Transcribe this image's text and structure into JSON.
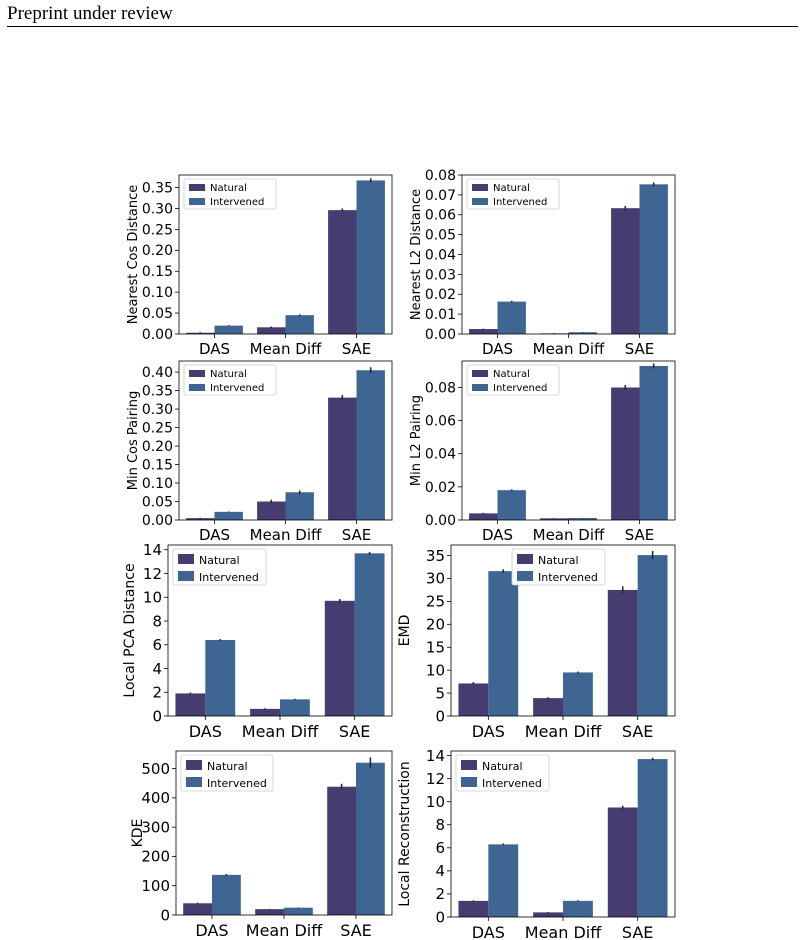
{
  "page": {
    "header": "Preprint under review"
  },
  "colors": {
    "natural": "#463c6f",
    "intervened": "#3f6592",
    "errbar": "#2b2b2b"
  },
  "chart_data": [
    {
      "type": "bar",
      "categories": [
        "DAS",
        "Mean Diff",
        "SAE"
      ],
      "series": [
        {
          "name": "Natural",
          "values": [
            0.003,
            0.016,
            0.296
          ],
          "errors": [
            0.001,
            0.002,
            0.004
          ]
        },
        {
          "name": "Intervened",
          "values": [
            0.02,
            0.045,
            0.367
          ],
          "errors": [
            0.001,
            0.002,
            0.005
          ]
        }
      ],
      "ylabel": "Nearest Cos Distance",
      "ylim": [
        0,
        0.38
      ],
      "yticks": [
        "0.00",
        "0.05",
        "0.10",
        "0.15",
        "0.20",
        "0.25",
        "0.30",
        "0.35"
      ],
      "legend": "top-left",
      "grid": false
    },
    {
      "type": "bar",
      "categories": [
        "DAS",
        "Mean Diff",
        "SAE"
      ],
      "series": [
        {
          "name": "Natural",
          "values": [
            0.0025,
            0.0003,
            0.0633
          ],
          "errors": [
            0.0002,
            0.0001,
            0.0012
          ]
        },
        {
          "name": "Intervened",
          "values": [
            0.0163,
            0.0009,
            0.0753
          ],
          "errors": [
            0.0004,
            0.0001,
            0.001
          ]
        }
      ],
      "ylabel": "Nearest L2 Distance",
      "ylim": [
        0,
        0.08
      ],
      "yticks": [
        "0.00",
        "0.01",
        "0.02",
        "0.03",
        "0.04",
        "0.05",
        "0.06",
        "0.07",
        "0.08"
      ],
      "legend": "top-left",
      "grid": false
    },
    {
      "type": "bar",
      "categories": [
        "DAS",
        "Mean Diff",
        "SAE"
      ],
      "series": [
        {
          "name": "Natural",
          "values": [
            0.005,
            0.05,
            0.331
          ],
          "errors": [
            0.001,
            0.005,
            0.007
          ]
        },
        {
          "name": "Intervened",
          "values": [
            0.022,
            0.075,
            0.405
          ],
          "errors": [
            0.001,
            0.005,
            0.008
          ]
        }
      ],
      "ylabel": "Min Cos Pairing",
      "ylim": [
        0,
        0.43
      ],
      "yticks": [
        "0.00",
        "0.05",
        "0.10",
        "0.15",
        "0.20",
        "0.25",
        "0.30",
        "0.35",
        "0.40"
      ],
      "legend": "top-left",
      "grid": false
    },
    {
      "type": "bar",
      "categories": [
        "DAS",
        "Mean Diff",
        "SAE"
      ],
      "series": [
        {
          "name": "Natural",
          "values": [
            0.004,
            0.001,
            0.08
          ],
          "errors": [
            0.0003,
            0.0001,
            0.0015
          ]
        },
        {
          "name": "Intervened",
          "values": [
            0.018,
            0.0012,
            0.093
          ],
          "errors": [
            0.0005,
            0.0001,
            0.0015
          ]
        }
      ],
      "ylabel": "Min L2 Pairing",
      "ylim": [
        0,
        0.096
      ],
      "yticks": [
        "0.00",
        "0.02",
        "0.04",
        "0.06",
        "0.08"
      ],
      "legend": "top-left",
      "grid": false
    },
    {
      "type": "bar",
      "categories": [
        "DAS",
        "Mean Diff",
        "SAE"
      ],
      "series": [
        {
          "name": "Natural",
          "values": [
            1.9,
            0.6,
            9.7
          ],
          "errors": [
            0.08,
            0.05,
            0.15
          ]
        },
        {
          "name": "Intervened",
          "values": [
            6.4,
            1.4,
            13.7
          ],
          "errors": [
            0.08,
            0.05,
            0.12
          ]
        }
      ],
      "ylabel": "Local PCA Distance",
      "ylim": [
        0,
        14.4
      ],
      "yticks": [
        "0",
        "2",
        "4",
        "6",
        "8",
        "10",
        "12",
        "14"
      ],
      "legend": "top-left",
      "grid": false
    },
    {
      "type": "bar",
      "categories": [
        "DAS",
        "Mean Diff",
        "SAE"
      ],
      "series": [
        {
          "name": "Natural",
          "values": [
            7.1,
            3.9,
            27.5
          ],
          "errors": [
            0.3,
            0.2,
            0.8
          ]
        },
        {
          "name": "Intervened",
          "values": [
            31.6,
            9.5,
            35.1
          ],
          "errors": [
            0.4,
            0.2,
            0.9
          ]
        }
      ],
      "ylabel": "EMD",
      "ylim": [
        0,
        37.3
      ],
      "yticks": [
        "0",
        "5",
        "10",
        "15",
        "20",
        "25",
        "30",
        "35"
      ],
      "legend": "top-right",
      "grid": false
    },
    {
      "type": "bar",
      "categories": [
        "DAS",
        "Mean Diff",
        "SAE"
      ],
      "series": [
        {
          "name": "Natural",
          "values": [
            40,
            20,
            438
          ],
          "errors": [
            2,
            1,
            10
          ]
        },
        {
          "name": "Intervened",
          "values": [
            137,
            25,
            520
          ],
          "errors": [
            3,
            1,
            18
          ]
        }
      ],
      "ylabel": "KDE",
      "ylim": [
        0,
        560
      ],
      "yticks": [
        "0",
        "100",
        "200",
        "300",
        "400",
        "500"
      ],
      "legend": "top-left",
      "grid": false
    },
    {
      "type": "bar",
      "categories": [
        "DAS",
        "Mean Diff",
        "SAE"
      ],
      "series": [
        {
          "name": "Natural",
          "values": [
            1.4,
            0.4,
            9.5
          ],
          "errors": [
            0.05,
            0.03,
            0.15
          ]
        },
        {
          "name": "Intervened",
          "values": [
            6.3,
            1.4,
            13.7
          ],
          "errors": [
            0.08,
            0.05,
            0.12
          ]
        }
      ],
      "ylabel": "Local Reconstruction",
      "ylim": [
        0,
        14.4
      ],
      "yticks": [
        "0",
        "2",
        "4",
        "6",
        "8",
        "10",
        "12",
        "14"
      ],
      "legend": "top-left",
      "grid": false
    }
  ]
}
